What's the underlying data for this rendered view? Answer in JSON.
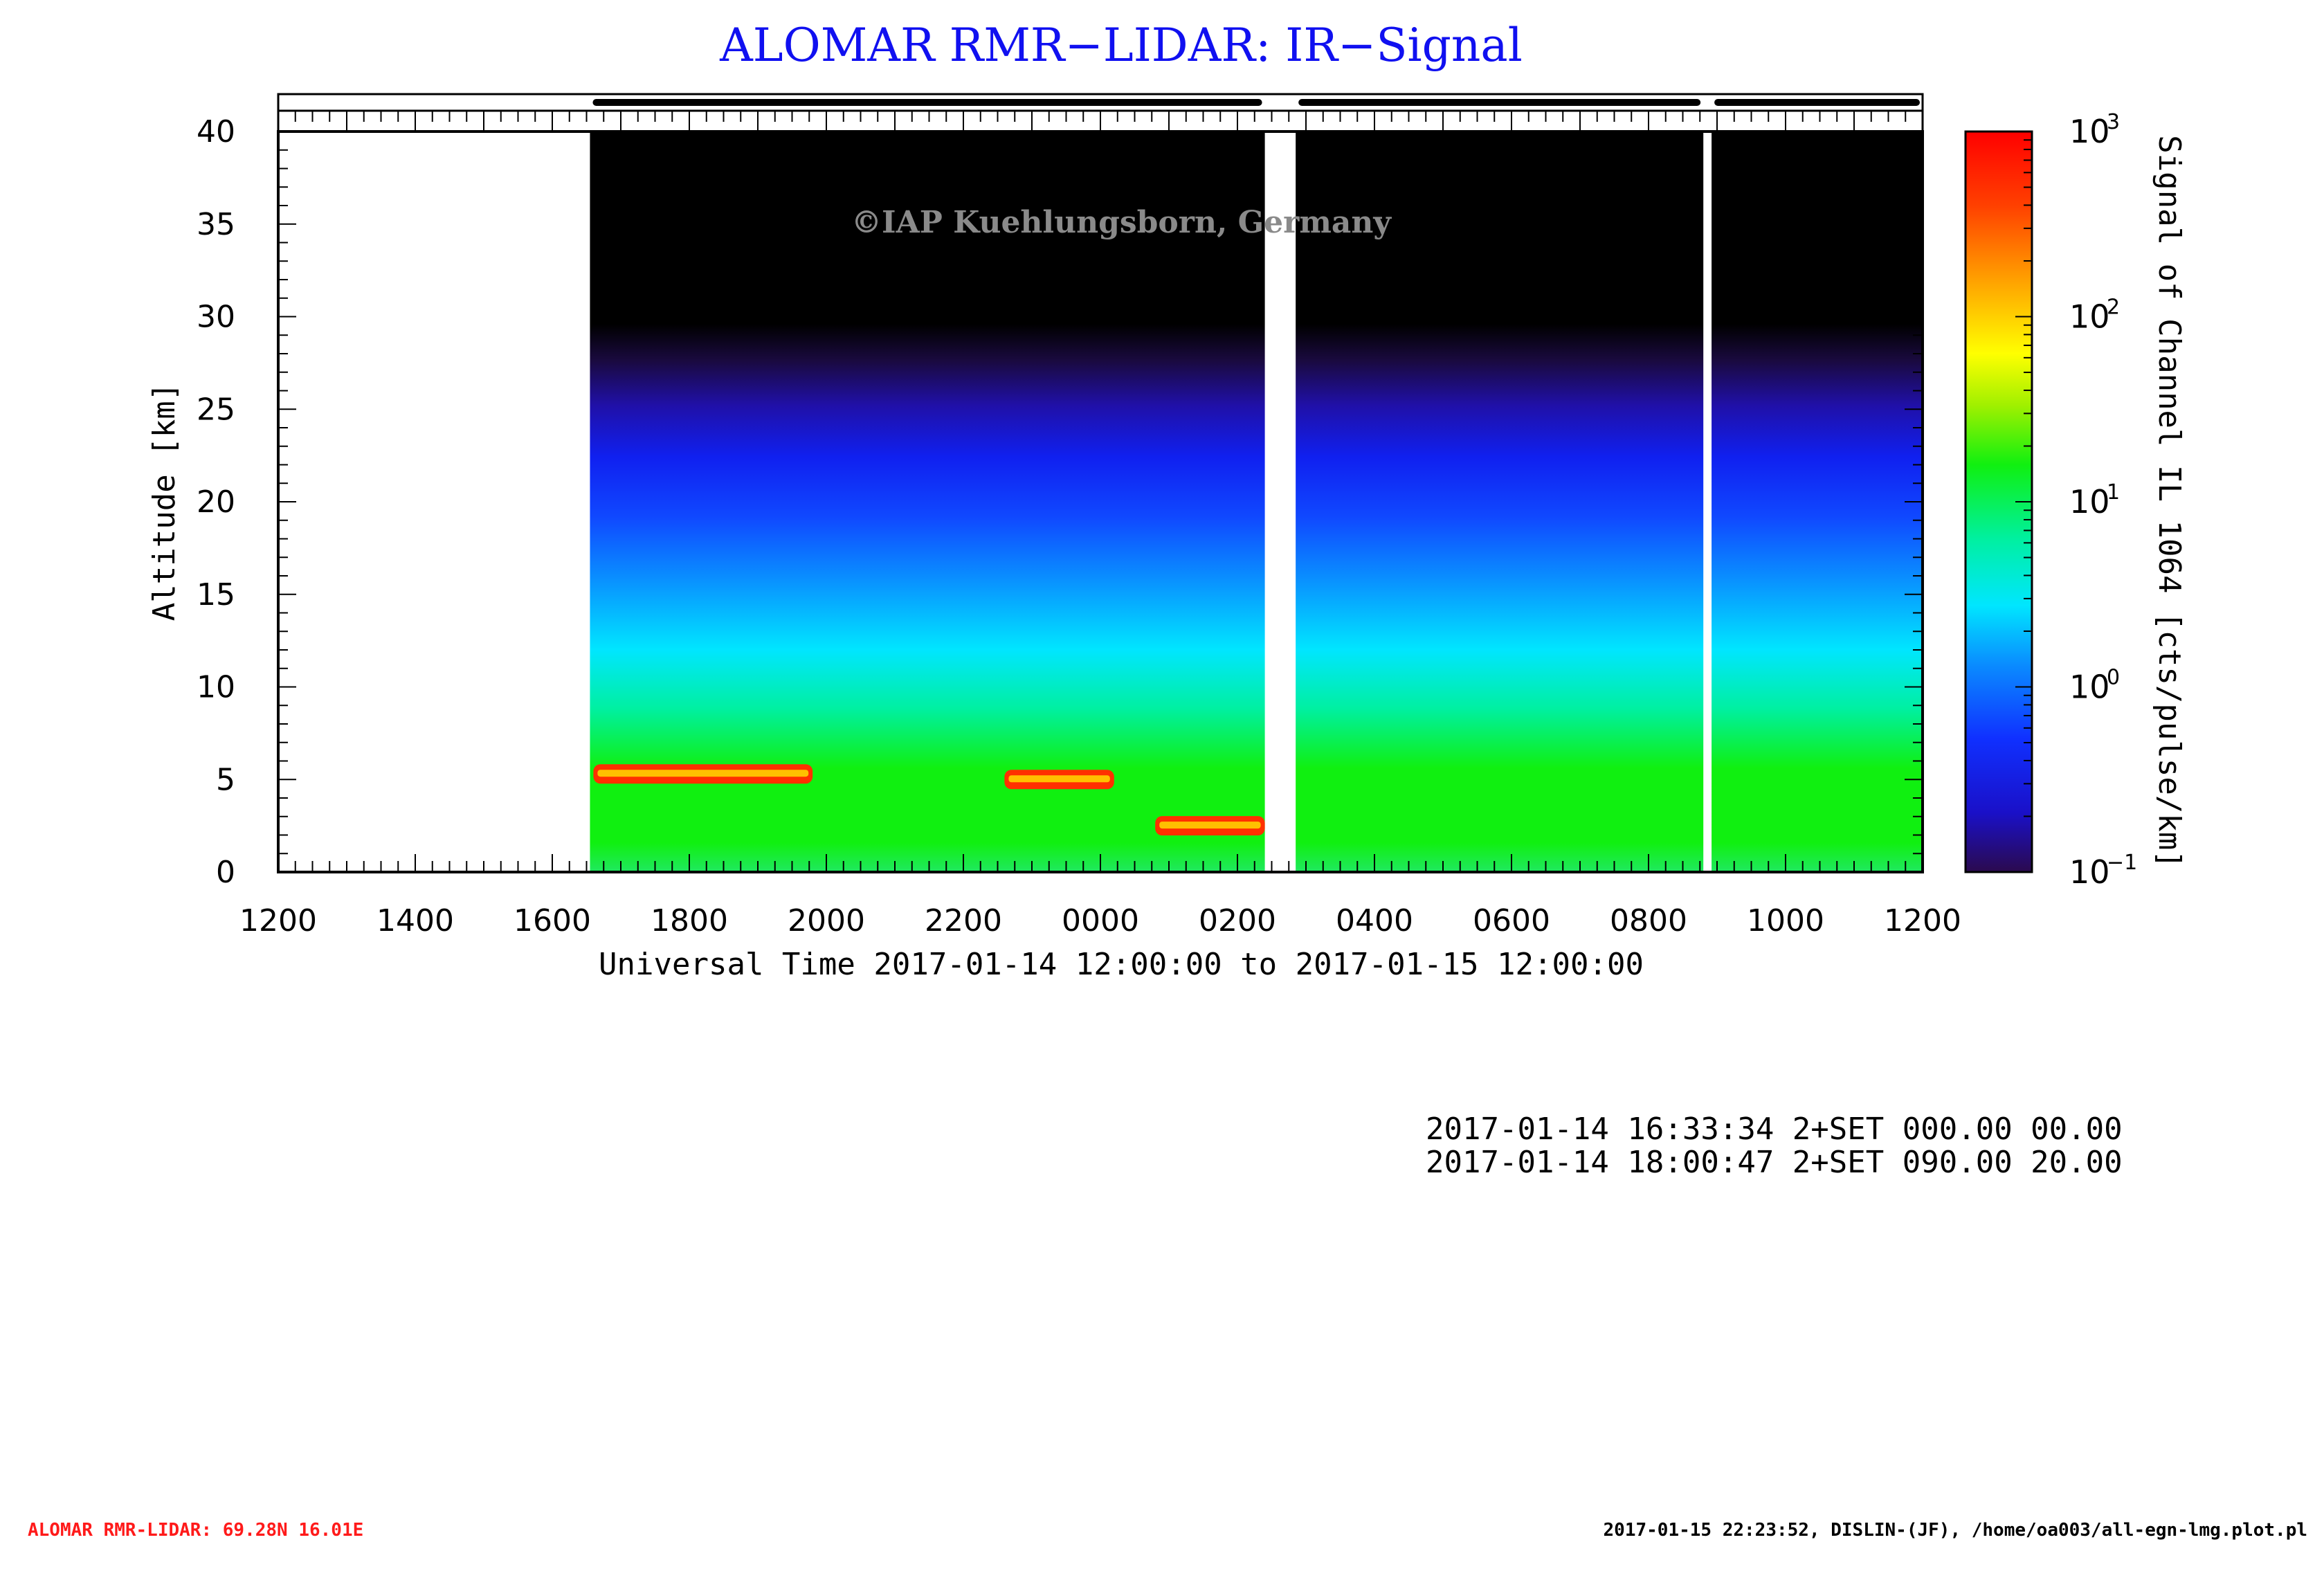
{
  "chart_data": {
    "type": "heatmap",
    "title": "ALOMAR RMR−LIDAR: IR−Signal",
    "xlabel": "Universal Time 2017-01-14 12:00:00 to 2017-01-15 12:00:00",
    "ylabel": "Altitude [km]",
    "colorbar_label": "Signal of Channel IL 1064 [cts/pulse/km]",
    "watermark": "©IAP Kuehlungsborn, Germany",
    "x_range_hours": [
      0,
      24
    ],
    "x_tick_labels": [
      "1200",
      "1400",
      "1600",
      "1800",
      "2000",
      "2200",
      "0000",
      "0200",
      "0400",
      "0600",
      "0800",
      "1000",
      "1200"
    ],
    "ylim": [
      0,
      40
    ],
    "y_ticks": [
      0,
      5,
      10,
      15,
      20,
      25,
      30,
      35,
      40
    ],
    "color_scale": "log",
    "colorbar_range": [
      0.1,
      1000
    ],
    "colorbar_ticks": [
      {
        "base": "10",
        "exp": "3",
        "value": 1000
      },
      {
        "base": "10",
        "exp": "2",
        "value": 100
      },
      {
        "base": "10",
        "exp": "1",
        "value": 10
      },
      {
        "base": "10",
        "exp": "0",
        "value": 1
      },
      {
        "base": "10",
        "exp": "−1",
        "value": 0.1
      }
    ],
    "colormap": [
      "#2b0a4e",
      "#1a10c8",
      "#1030ff",
      "#0a8cff",
      "#00e6ff",
      "#00f0a0",
      "#10f010",
      "#a0f000",
      "#ffff00",
      "#ffa000",
      "#ff4000",
      "#ff0000"
    ],
    "measurement_periods_hours": [
      [
        4.55,
        14.4
      ],
      [
        14.85,
        20.8
      ],
      [
        20.92,
        24.0
      ]
    ],
    "data_gaps_hours": [
      [
        14.4,
        14.85
      ],
      [
        20.8,
        20.92
      ]
    ],
    "tropospheric_clouds": [
      {
        "start_hour": 4.6,
        "end_hour": 7.8,
        "altitude_km": 5.3,
        "signal": "≈300–1000"
      },
      {
        "start_hour": 10.6,
        "end_hour": 12.2,
        "altitude_km": 5.0,
        "signal": "≈300–1000"
      },
      {
        "start_hour": 12.8,
        "end_hour": 14.4,
        "altitude_km": 2.5,
        "signal": "≈300–1000"
      }
    ],
    "signal_profile_km": [
      {
        "altitude_km": 1,
        "signal": 30
      },
      {
        "altitude_km": 5,
        "signal": 12
      },
      {
        "altitude_km": 10,
        "signal": 3
      },
      {
        "altitude_km": 15,
        "signal": 1.5
      },
      {
        "altitude_km": 20,
        "signal": 0.5
      },
      {
        "altitude_km": 25,
        "signal": 0.2
      },
      {
        "altitude_km": 30,
        "signal": 0.05
      }
    ]
  },
  "info": {
    "lines": [
      "2017-01-14 16:33:34 2+SET 000.00 00.00",
      "2017-01-14 18:00:47 2+SET 090.00 20.00"
    ]
  },
  "footer": {
    "left": "ALOMAR RMR-LIDAR: 69.28N 16.01E",
    "right": "2017-01-15 22:23:52, DISLIN-(JF), /home/oa003/all-egn-lmg.plot.pl"
  }
}
